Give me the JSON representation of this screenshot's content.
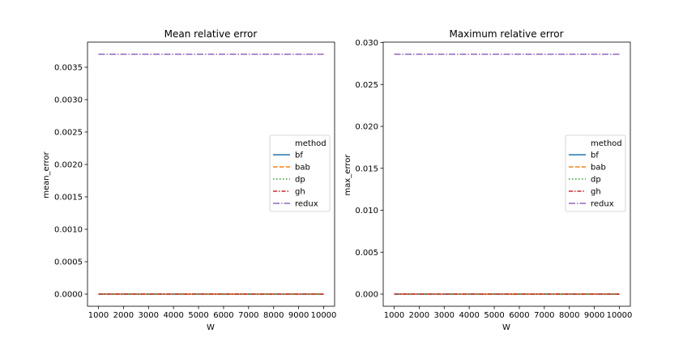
{
  "chart_data": [
    {
      "type": "line",
      "title": "Mean relative error",
      "xlabel": "W",
      "ylabel": "mean_error",
      "xlim": [
        1000,
        10000
      ],
      "ylim": [
        0,
        0.0037
      ],
      "xticks": [
        1000,
        2000,
        3000,
        4000,
        5000,
        6000,
        7000,
        8000,
        9000,
        10000
      ],
      "yticks": [
        0.0,
        0.0005,
        0.001,
        0.0015,
        0.002,
        0.0025,
        0.003,
        0.0035
      ],
      "ytick_labels": [
        "0.0000",
        "0.0005",
        "0.0010",
        "0.0015",
        "0.0020",
        "0.0025",
        "0.0030",
        "0.0035"
      ],
      "grid": false,
      "legend_title": "method",
      "legend_position": "center-right",
      "x": [
        1000,
        10000
      ],
      "series": [
        {
          "name": "bf",
          "values": [
            0,
            0
          ],
          "color": "#1f77b4",
          "dash": "solid"
        },
        {
          "name": "bab",
          "values": [
            0,
            0
          ],
          "color": "#ff7f0e",
          "dash": "dashed"
        },
        {
          "name": "dp",
          "values": [
            0,
            0
          ],
          "color": "#2ca02c",
          "dash": "dotted"
        },
        {
          "name": "gh",
          "values": [
            0,
            0
          ],
          "color": "#d62728",
          "dash": "dashdot"
        },
        {
          "name": "redux",
          "values": [
            0.0037,
            0.0037
          ],
          "color": "#9467bd",
          "dash": "longdashdot"
        }
      ]
    },
    {
      "type": "line",
      "title": "Maximum relative error",
      "xlabel": "W",
      "ylabel": "max_error",
      "xlim": [
        1000,
        10000
      ],
      "ylim": [
        0,
        0.0286
      ],
      "xticks": [
        1000,
        2000,
        3000,
        4000,
        5000,
        6000,
        7000,
        8000,
        9000,
        10000
      ],
      "yticks": [
        0.0,
        0.005,
        0.01,
        0.015,
        0.02,
        0.025,
        0.03
      ],
      "ytick_labels": [
        "0.000",
        "0.005",
        "0.010",
        "0.015",
        "0.020",
        "0.025",
        "0.030"
      ],
      "grid": false,
      "legend_title": "method",
      "legend_position": "center-right",
      "x": [
        1000,
        10000
      ],
      "series": [
        {
          "name": "bf",
          "values": [
            0,
            0
          ],
          "color": "#1f77b4",
          "dash": "solid"
        },
        {
          "name": "bab",
          "values": [
            0,
            0
          ],
          "color": "#ff7f0e",
          "dash": "dashed"
        },
        {
          "name": "dp",
          "values": [
            0,
            0
          ],
          "color": "#2ca02c",
          "dash": "dotted"
        },
        {
          "name": "gh",
          "values": [
            0,
            0
          ],
          "color": "#d62728",
          "dash": "dashdot"
        },
        {
          "name": "redux",
          "values": [
            0.0286,
            0.0286
          ],
          "color": "#9467bd",
          "dash": "longdashdot"
        }
      ]
    }
  ]
}
